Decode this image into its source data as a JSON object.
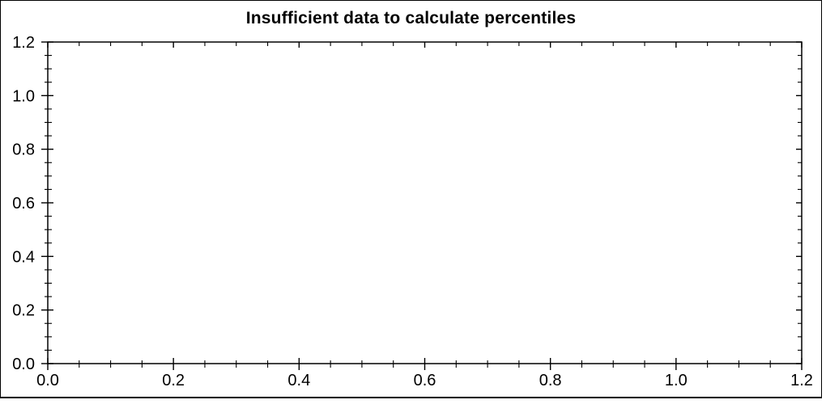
{
  "page": {
    "background": "#ffffff"
  },
  "chart_data": {
    "type": "scatter",
    "title": "Insufficient data to calculate percentiles",
    "xlabel": "",
    "ylabel": "",
    "series": [],
    "points": [],
    "xlim": [
      0,
      1.2
    ],
    "ylim": [
      0,
      1.2
    ],
    "x_ticks": {
      "values": [
        0,
        0.2,
        0.4,
        0.6,
        0.8,
        1.0,
        1.2
      ],
      "labels": [
        "0.0",
        "0.2",
        "0.4",
        "0.6",
        "0.8",
        "1.0",
        "1.2"
      ]
    },
    "y_ticks": {
      "values": [
        0,
        0.2,
        0.4,
        0.6,
        0.8,
        1.0,
        1.2
      ],
      "labels": [
        "0.0",
        "0.2",
        "0.4",
        "0.6",
        "0.8",
        "1.0",
        "1.2"
      ]
    },
    "x_minor_step": 0.05,
    "y_minor_step": 0.05,
    "grid": false,
    "legend": null,
    "colors": {
      "axis": "#000000",
      "text": "#000000",
      "frame": "#000000",
      "background": "#ffffff"
    }
  }
}
